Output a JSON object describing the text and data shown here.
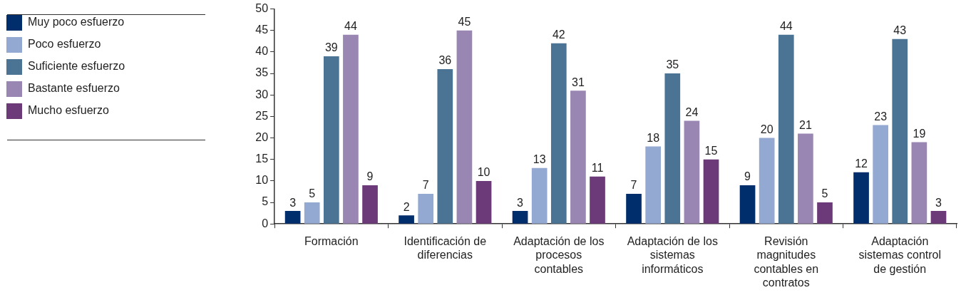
{
  "chart_data": {
    "type": "bar",
    "categories": [
      "Formación",
      "Identificación de diferencias",
      "Adaptación de los procesos contables",
      "Adaptación de los sistemas informáticos",
      "Revisión magnitudes contables en contratos",
      "Adaptación sistemas control de gestión"
    ],
    "series": [
      {
        "name": "Muy poco esfuerzo",
        "color": "#002d6b",
        "values": [
          3,
          2,
          3,
          7,
          9,
          12
        ]
      },
      {
        "name": "Poco esfuerzo",
        "color": "#94a9d1",
        "values": [
          5,
          7,
          13,
          18,
          20,
          23
        ]
      },
      {
        "name": "Suficiente esfuerzo",
        "color": "#4b7394",
        "values": [
          39,
          36,
          42,
          35,
          44,
          43
        ]
      },
      {
        "name": "Bastante esfuerzo",
        "color": "#9a86b3",
        "values": [
          44,
          45,
          31,
          24,
          21,
          19
        ]
      },
      {
        "name": "Mucho esfuerzo",
        "color": "#6c3a78",
        "values": [
          9,
          10,
          11,
          15,
          5,
          3
        ]
      }
    ],
    "ylim": [
      0,
      50
    ],
    "yticks": [
      0,
      5,
      10,
      15,
      20,
      25,
      30,
      35,
      40,
      45,
      50
    ],
    "grid": false,
    "legend": "left",
    "data_labels": true
  }
}
